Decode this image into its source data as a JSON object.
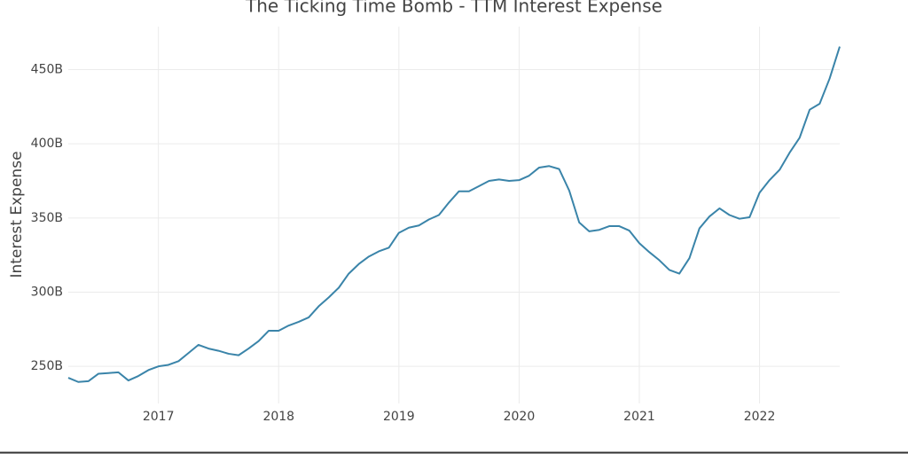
{
  "chart_data": {
    "type": "line",
    "title": "The Ticking Time Bomb - TTM Interest Expense",
    "y_label": "Interest Expense",
    "x": [
      2016.25,
      2016.333,
      2016.417,
      2016.5,
      2016.583,
      2016.667,
      2016.75,
      2016.833,
      2016.917,
      2017.0,
      2017.083,
      2017.167,
      2017.25,
      2017.333,
      2017.417,
      2017.5,
      2017.583,
      2017.667,
      2017.75,
      2017.833,
      2017.917,
      2018.0,
      2018.083,
      2018.167,
      2018.25,
      2018.333,
      2018.417,
      2018.5,
      2018.583,
      2018.667,
      2018.75,
      2018.833,
      2018.917,
      2019.0,
      2019.083,
      2019.167,
      2019.25,
      2019.333,
      2019.417,
      2019.5,
      2019.583,
      2019.667,
      2019.75,
      2019.833,
      2019.917,
      2020.0,
      2020.083,
      2020.167,
      2020.25,
      2020.333,
      2020.417,
      2020.5,
      2020.583,
      2020.667,
      2020.75,
      2020.833,
      2020.917,
      2021.0,
      2021.083,
      2021.167,
      2021.25,
      2021.333,
      2021.417,
      2021.5,
      2021.583,
      2021.667,
      2021.75,
      2021.833,
      2021.917,
      2022.0,
      2022.083,
      2022.167,
      2022.25,
      2022.333,
      2022.417,
      2022.5,
      2022.583,
      2022.667
    ],
    "series": [
      {
        "name": "Interest Expense",
        "color": "#3a84a9",
        "values": [
          242.3,
          239.5,
          240,
          245,
          245.5,
          246,
          240.5,
          243.5,
          247.5,
          250,
          251,
          253.5,
          259,
          264.5,
          262,
          260.5,
          258.5,
          257.5,
          262,
          267,
          274,
          274,
          277.5,
          280,
          283,
          290.5,
          296.5,
          303,
          312.5,
          319,
          324,
          327.5,
          330,
          340,
          343.5,
          345,
          349,
          352,
          360.5,
          368,
          368,
          371.5,
          375,
          376,
          375,
          375.5,
          378.5,
          384,
          385,
          383,
          368.5,
          347,
          341,
          342,
          344.5,
          344.5,
          341.5,
          333,
          327,
          321.5,
          315,
          312.5,
          323,
          343,
          351,
          356.5,
          352,
          349.5,
          350.5,
          367,
          375.5,
          382.5,
          394,
          404,
          423,
          427,
          444,
          465.5
        ]
      }
    ],
    "xlim": [
      2016.25,
      2022.667
    ],
    "xticks": [
      2017,
      2018,
      2019,
      2020,
      2021,
      2022
    ],
    "ylim": [
      225,
      479
    ],
    "yticks": [
      {
        "value": 250,
        "label": "250B"
      },
      {
        "value": 300,
        "label": "300B"
      },
      {
        "value": 350,
        "label": "350B"
      },
      {
        "value": 400,
        "label": "400B"
      },
      {
        "value": 450,
        "label": "450B"
      }
    ],
    "grid": true
  }
}
